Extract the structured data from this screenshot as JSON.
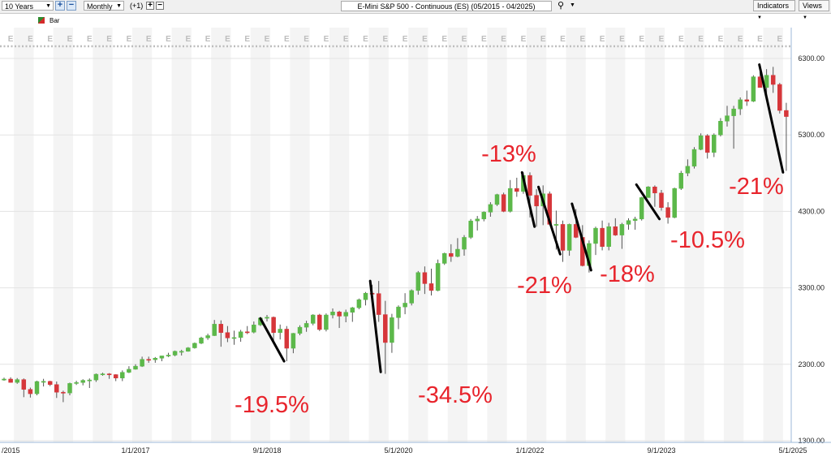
{
  "toolbar": {
    "period": "10 Years",
    "zoom_in": "+",
    "zoom_out": "−",
    "interval": "Monthly",
    "offset": "(+1)",
    "offset_plus": "+",
    "offset_minus": "−",
    "title": "E-Mini S&P 500 - Continuous (ES) (05/2015 - 04/2025)",
    "indicators": "Indicators",
    "views": "Views"
  },
  "legend": {
    "label": "Bar"
  },
  "colors": {
    "up": "#5cb84a",
    "down": "#d6363a",
    "annotation": "#e8242c",
    "earnings": "#bdbdbd",
    "grid": "#e3e3e3",
    "band": "#f4f4f4"
  },
  "chart_data": {
    "type": "candlestick",
    "title": "E-Mini S&P 500 - Continuous (ES) (05/2015 - 04/2025)",
    "interval": "Monthly",
    "y_ticks": [
      "6300.00",
      "5300.00",
      "4300.00",
      "3300.00",
      "2300.00",
      "1300.00"
    ],
    "y_tick_values": [
      6300,
      5300,
      4300,
      3300,
      2300,
      1300
    ],
    "ylim": [
      1300,
      6600
    ],
    "x_ticks": [
      "/2015",
      "1/1/2017",
      "9/1/2018",
      "5/1/2020",
      "1/1/2022",
      "9/1/2023",
      "5/1/2025"
    ],
    "x_tick_months": [
      0,
      20,
      40,
      60,
      80,
      100,
      120
    ],
    "earnings_marker": "E",
    "earnings_count": 40,
    "candles": [
      {
        "m": 0,
        "o": 2100,
        "h": 2125,
        "l": 2085,
        "c": 2107
      },
      {
        "m": 1,
        "o": 2107,
        "h": 2130,
        "l": 2060,
        "c": 2063
      },
      {
        "m": 2,
        "o": 2063,
        "h": 2120,
        "l": 2045,
        "c": 2100
      },
      {
        "m": 3,
        "o": 2100,
        "h": 2115,
        "l": 1870,
        "c": 1972
      },
      {
        "m": 4,
        "o": 1972,
        "h": 1995,
        "l": 1865,
        "c": 1915
      },
      {
        "m": 5,
        "o": 1915,
        "h": 2085,
        "l": 1895,
        "c": 2075
      },
      {
        "m": 6,
        "o": 2075,
        "h": 2110,
        "l": 2010,
        "c": 2077
      },
      {
        "m": 7,
        "o": 2077,
        "h": 2085,
        "l": 2015,
        "c": 2035
      },
      {
        "m": 8,
        "o": 2035,
        "h": 2075,
        "l": 1860,
        "c": 1935
      },
      {
        "m": 9,
        "o": 1935,
        "h": 1955,
        "l": 1805,
        "c": 1925
      },
      {
        "m": 10,
        "o": 1925,
        "h": 2060,
        "l": 1895,
        "c": 2050
      },
      {
        "m": 11,
        "o": 2050,
        "h": 2085,
        "l": 2030,
        "c": 2062
      },
      {
        "m": 12,
        "o": 2062,
        "h": 2105,
        "l": 2025,
        "c": 2090
      },
      {
        "m": 13,
        "o": 2090,
        "h": 2115,
        "l": 1990,
        "c": 2095
      },
      {
        "m": 14,
        "o": 2095,
        "h": 2180,
        "l": 2070,
        "c": 2170
      },
      {
        "m": 15,
        "o": 2170,
        "h": 2190,
        "l": 2150,
        "c": 2175
      },
      {
        "m": 16,
        "o": 2175,
        "h": 2185,
        "l": 2110,
        "c": 2165
      },
      {
        "m": 17,
        "o": 2165,
        "h": 2170,
        "l": 2080,
        "c": 2120
      },
      {
        "m": 18,
        "o": 2120,
        "h": 2220,
        "l": 2080,
        "c": 2195
      },
      {
        "m": 19,
        "o": 2195,
        "h": 2275,
        "l": 2185,
        "c": 2235
      },
      {
        "m": 20,
        "o": 2235,
        "h": 2300,
        "l": 2230,
        "c": 2275
      },
      {
        "m": 21,
        "o": 2275,
        "h": 2400,
        "l": 2265,
        "c": 2365
      },
      {
        "m": 22,
        "o": 2365,
        "h": 2400,
        "l": 2320,
        "c": 2360
      },
      {
        "m": 23,
        "o": 2360,
        "h": 2395,
        "l": 2320,
        "c": 2380
      },
      {
        "m": 24,
        "o": 2380,
        "h": 2410,
        "l": 2340,
        "c": 2410
      },
      {
        "m": 25,
        "o": 2410,
        "h": 2450,
        "l": 2395,
        "c": 2420
      },
      {
        "m": 26,
        "o": 2420,
        "h": 2480,
        "l": 2405,
        "c": 2470
      },
      {
        "m": 27,
        "o": 2470,
        "h": 2490,
        "l": 2415,
        "c": 2470
      },
      {
        "m": 28,
        "o": 2470,
        "h": 2525,
        "l": 2465,
        "c": 2515
      },
      {
        "m": 29,
        "o": 2515,
        "h": 2585,
        "l": 2505,
        "c": 2575
      },
      {
        "m": 30,
        "o": 2575,
        "h": 2660,
        "l": 2565,
        "c": 2645
      },
      {
        "m": 31,
        "o": 2645,
        "h": 2700,
        "l": 2620,
        "c": 2675
      },
      {
        "m": 32,
        "o": 2675,
        "h": 2880,
        "l": 2670,
        "c": 2825
      },
      {
        "m": 33,
        "o": 2825,
        "h": 2875,
        "l": 2530,
        "c": 2715
      },
      {
        "m": 34,
        "o": 2715,
        "h": 2800,
        "l": 2590,
        "c": 2645
      },
      {
        "m": 35,
        "o": 2645,
        "h": 2740,
        "l": 2555,
        "c": 2650
      },
      {
        "m": 36,
        "o": 2650,
        "h": 2750,
        "l": 2595,
        "c": 2725
      },
      {
        "m": 37,
        "o": 2725,
        "h": 2800,
        "l": 2695,
        "c": 2720
      },
      {
        "m": 38,
        "o": 2720,
        "h": 2860,
        "l": 2705,
        "c": 2815
      },
      {
        "m": 39,
        "o": 2815,
        "h": 2920,
        "l": 2800,
        "c": 2905
      },
      {
        "m": 40,
        "o": 2905,
        "h": 2945,
        "l": 2860,
        "c": 2915
      },
      {
        "m": 41,
        "o": 2915,
        "h": 2925,
        "l": 2605,
        "c": 2715
      },
      {
        "m": 42,
        "o": 2715,
        "h": 2820,
        "l": 2625,
        "c": 2760
      },
      {
        "m": 43,
        "o": 2760,
        "h": 2800,
        "l": 2340,
        "c": 2510
      },
      {
        "m": 44,
        "o": 2510,
        "h": 2710,
        "l": 2445,
        "c": 2705
      },
      {
        "m": 45,
        "o": 2705,
        "h": 2810,
        "l": 2680,
        "c": 2785
      },
      {
        "m": 46,
        "o": 2785,
        "h": 2870,
        "l": 2725,
        "c": 2835
      },
      {
        "m": 47,
        "o": 2835,
        "h": 2955,
        "l": 2810,
        "c": 2945
      },
      {
        "m": 48,
        "o": 2945,
        "h": 2960,
        "l": 2735,
        "c": 2755
      },
      {
        "m": 49,
        "o": 2755,
        "h": 2965,
        "l": 2730,
        "c": 2945
      },
      {
        "m": 50,
        "o": 2945,
        "h": 3030,
        "l": 2900,
        "c": 2985
      },
      {
        "m": 51,
        "o": 2985,
        "h": 3000,
        "l": 2775,
        "c": 2930
      },
      {
        "m": 52,
        "o": 2930,
        "h": 3015,
        "l": 2850,
        "c": 2980
      },
      {
        "m": 53,
        "o": 2980,
        "h": 3050,
        "l": 2855,
        "c": 3040
      },
      {
        "m": 54,
        "o": 3040,
        "h": 3160,
        "l": 3020,
        "c": 3145
      },
      {
        "m": 55,
        "o": 3145,
        "h": 3245,
        "l": 3070,
        "c": 3230
      },
      {
        "m": 56,
        "o": 3230,
        "h": 3340,
        "l": 3185,
        "c": 3225
      },
      {
        "m": 57,
        "o": 3225,
        "h": 3390,
        "l": 2855,
        "c": 2950
      },
      {
        "m": 58,
        "o": 2950,
        "h": 3130,
        "l": 2175,
        "c": 2585
      },
      {
        "m": 59,
        "o": 2585,
        "h": 2960,
        "l": 2450,
        "c": 2910
      },
      {
        "m": 60,
        "o": 2910,
        "h": 3070,
        "l": 2760,
        "c": 3050
      },
      {
        "m": 61,
        "o": 3050,
        "h": 3230,
        "l": 2955,
        "c": 3100
      },
      {
        "m": 62,
        "o": 3100,
        "h": 3280,
        "l": 3070,
        "c": 3265
      },
      {
        "m": 63,
        "o": 3265,
        "h": 3520,
        "l": 3210,
        "c": 3500
      },
      {
        "m": 64,
        "o": 3500,
        "h": 3580,
        "l": 3220,
        "c": 3355
      },
      {
        "m": 65,
        "o": 3355,
        "h": 3550,
        "l": 3200,
        "c": 3265
      },
      {
        "m": 66,
        "o": 3265,
        "h": 3670,
        "l": 3255,
        "c": 3620
      },
      {
        "m": 67,
        "o": 3620,
        "h": 3760,
        "l": 3600,
        "c": 3750
      },
      {
        "m": 68,
        "o": 3750,
        "h": 3870,
        "l": 3640,
        "c": 3710
      },
      {
        "m": 69,
        "o": 3710,
        "h": 3950,
        "l": 3700,
        "c": 3805
      },
      {
        "m": 70,
        "o": 3805,
        "h": 3990,
        "l": 3720,
        "c": 3960
      },
      {
        "m": 71,
        "o": 3960,
        "h": 4200,
        "l": 3940,
        "c": 4175
      },
      {
        "m": 72,
        "o": 4175,
        "h": 4240,
        "l": 4050,
        "c": 4200
      },
      {
        "m": 73,
        "o": 4200,
        "h": 4300,
        "l": 4170,
        "c": 4290
      },
      {
        "m": 74,
        "o": 4290,
        "h": 4420,
        "l": 4230,
        "c": 4390
      },
      {
        "m": 75,
        "o": 4390,
        "h": 4530,
        "l": 4370,
        "c": 4520
      },
      {
        "m": 76,
        "o": 4520,
        "h": 4545,
        "l": 4290,
        "c": 4300
      },
      {
        "m": 77,
        "o": 4300,
        "h": 4710,
        "l": 4285,
        "c": 4600
      },
      {
        "m": 78,
        "o": 4600,
        "h": 4740,
        "l": 4490,
        "c": 4560
      },
      {
        "m": 79,
        "o": 4560,
        "h": 4810,
        "l": 4530,
        "c": 4770
      },
      {
        "m": 80,
        "o": 4770,
        "h": 4810,
        "l": 4220,
        "c": 4510
      },
      {
        "m": 81,
        "o": 4510,
        "h": 4590,
        "l": 4100,
        "c": 4370
      },
      {
        "m": 82,
        "o": 4370,
        "h": 4640,
        "l": 4120,
        "c": 4530
      },
      {
        "m": 83,
        "o": 4530,
        "h": 4560,
        "l": 4120,
        "c": 4130
      },
      {
        "m": 84,
        "o": 4130,
        "h": 4310,
        "l": 3800,
        "c": 4130
      },
      {
        "m": 85,
        "o": 4130,
        "h": 4180,
        "l": 3640,
        "c": 3790
      },
      {
        "m": 86,
        "o": 3790,
        "h": 4140,
        "l": 3720,
        "c": 4130
      },
      {
        "m": 87,
        "o": 4130,
        "h": 4330,
        "l": 3950,
        "c": 3960
      },
      {
        "m": 88,
        "o": 3960,
        "h": 4120,
        "l": 3580,
        "c": 3590
      },
      {
        "m": 89,
        "o": 3590,
        "h": 3920,
        "l": 3500,
        "c": 3880
      },
      {
        "m": 90,
        "o": 3880,
        "h": 4100,
        "l": 3730,
        "c": 4080
      },
      {
        "m": 91,
        "o": 4080,
        "h": 4180,
        "l": 3790,
        "c": 3840
      },
      {
        "m": 92,
        "o": 3840,
        "h": 4150,
        "l": 3790,
        "c": 4100
      },
      {
        "m": 93,
        "o": 4100,
        "h": 4210,
        "l": 3980,
        "c": 3990
      },
      {
        "m": 94,
        "o": 3990,
        "h": 4150,
        "l": 3810,
        "c": 4130
      },
      {
        "m": 95,
        "o": 4130,
        "h": 4210,
        "l": 4060,
        "c": 4180
      },
      {
        "m": 96,
        "o": 4180,
        "h": 4230,
        "l": 4060,
        "c": 4200
      },
      {
        "m": 97,
        "o": 4200,
        "h": 4490,
        "l": 4180,
        "c": 4480
      },
      {
        "m": 98,
        "o": 4480,
        "h": 4630,
        "l": 4480,
        "c": 4620
      },
      {
        "m": 99,
        "o": 4620,
        "h": 4640,
        "l": 4360,
        "c": 4540
      },
      {
        "m": 100,
        "o": 4540,
        "h": 4580,
        "l": 4310,
        "c": 4350
      },
      {
        "m": 101,
        "o": 4350,
        "h": 4420,
        "l": 4140,
        "c": 4220
      },
      {
        "m": 102,
        "o": 4220,
        "h": 4610,
        "l": 4210,
        "c": 4600
      },
      {
        "m": 103,
        "o": 4600,
        "h": 4830,
        "l": 4580,
        "c": 4800
      },
      {
        "m": 104,
        "o": 4800,
        "h": 4980,
        "l": 4760,
        "c": 4890
      },
      {
        "m": 105,
        "o": 4890,
        "h": 5140,
        "l": 4860,
        "c": 5110
      },
      {
        "m": 106,
        "o": 5110,
        "h": 5320,
        "l": 5100,
        "c": 5290
      },
      {
        "m": 107,
        "o": 5290,
        "h": 5310,
        "l": 4990,
        "c": 5070
      },
      {
        "m": 108,
        "o": 5070,
        "h": 5320,
        "l": 5010,
        "c": 5300
      },
      {
        "m": 109,
        "o": 5300,
        "h": 5520,
        "l": 5280,
        "c": 5480
      },
      {
        "m": 110,
        "o": 5480,
        "h": 5680,
        "l": 5410,
        "c": 5550
      },
      {
        "m": 111,
        "o": 5550,
        "h": 5680,
        "l": 5120,
        "c": 5640
      },
      {
        "m": 112,
        "o": 5640,
        "h": 5790,
        "l": 5560,
        "c": 5760
      },
      {
        "m": 113,
        "o": 5760,
        "h": 5880,
        "l": 5680,
        "c": 5740
      },
      {
        "m": 114,
        "o": 5740,
        "h": 6080,
        "l": 5730,
        "c": 6060
      },
      {
        "m": 115,
        "o": 6060,
        "h": 6200,
        "l": 5920,
        "c": 5920
      },
      {
        "m": 116,
        "o": 5920,
        "h": 6160,
        "l": 5830,
        "c": 6080
      },
      {
        "m": 117,
        "o": 6080,
        "h": 6190,
        "l": 5850,
        "c": 5960
      },
      {
        "m": 118,
        "o": 5960,
        "h": 5980,
        "l": 5580,
        "c": 5620
      },
      {
        "m": 119,
        "o": 5620,
        "h": 5720,
        "l": 4830,
        "c": 5540
      }
    ],
    "annotations": [
      {
        "text": "-19.5%",
        "line_from": {
          "m": 39.0,
          "v": 2900
        },
        "line_to": {
          "m": 42.6,
          "v": 2340
        }
      },
      {
        "text": "-34.5%",
        "line_from": {
          "m": 55.7,
          "v": 3390
        },
        "line_to": {
          "m": 57.3,
          "v": 2200
        }
      },
      {
        "text": "-13%",
        "line_from": {
          "m": 78.8,
          "v": 4810
        },
        "line_to": {
          "m": 80.7,
          "v": 4100
        }
      },
      {
        "text": "-21%",
        "line_from": {
          "m": 81.3,
          "v": 4620
        },
        "line_to": {
          "m": 84.6,
          "v": 3740
        }
      },
      {
        "text": "-18%",
        "line_from": {
          "m": 86.4,
          "v": 4400
        },
        "line_to": {
          "m": 89.3,
          "v": 3530
        }
      },
      {
        "text": "-10.5%",
        "line_from": {
          "m": 96.2,
          "v": 4650
        },
        "line_to": {
          "m": 99.7,
          "v": 4200
        }
      },
      {
        "text": "-21%",
        "line_from": {
          "m": 114.9,
          "v": 6220
        },
        "line_to": {
          "m": 118.5,
          "v": 4810
        }
      }
    ]
  }
}
